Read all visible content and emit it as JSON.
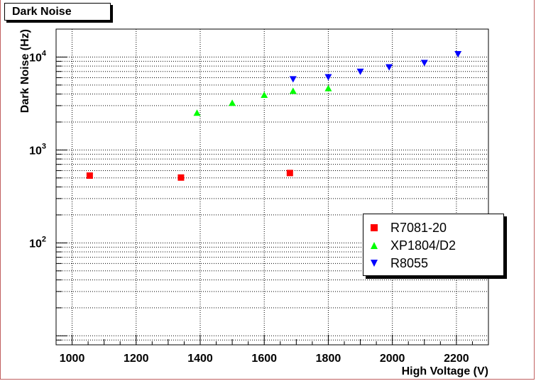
{
  "title": "Dark Noise",
  "chart_data": {
    "type": "scatter",
    "title": "Dark Noise",
    "xlabel": "High Voltage (V)",
    "ylabel": "Dark Noise (Hz)",
    "xlim": [
      950,
      2300
    ],
    "ylim": [
      8,
      20000
    ],
    "yscale": "log",
    "grid": true,
    "legend_position": "bottom-right",
    "x_ticks": [
      1000,
      1200,
      1400,
      1600,
      1800,
      2000,
      2200
    ],
    "y_ticks": [
      {
        "value": 100,
        "base": "10",
        "exp": "2"
      },
      {
        "value": 1000,
        "base": "10",
        "exp": "3"
      },
      {
        "value": 10000,
        "base": "10",
        "exp": "4"
      }
    ],
    "series": [
      {
        "name": "R7081-20",
        "marker": "square",
        "color": "#ff0000",
        "points": [
          [
            1055,
            530
          ],
          [
            1340,
            505
          ],
          [
            1680,
            565
          ]
        ]
      },
      {
        "name": "XP1804/D2",
        "marker": "triangle-up",
        "color": "#00ff00",
        "points": [
          [
            1390,
            2500
          ],
          [
            1500,
            3200
          ],
          [
            1600,
            3900
          ],
          [
            1690,
            4300
          ],
          [
            1800,
            4600
          ]
        ]
      },
      {
        "name": "R8055",
        "marker": "triangle-down",
        "color": "#0000ff",
        "points": [
          [
            1690,
            5800
          ],
          [
            1800,
            6100
          ],
          [
            1900,
            7000
          ],
          [
            1990,
            7800
          ],
          [
            2100,
            8700
          ],
          [
            2205,
            10800
          ]
        ]
      }
    ]
  }
}
